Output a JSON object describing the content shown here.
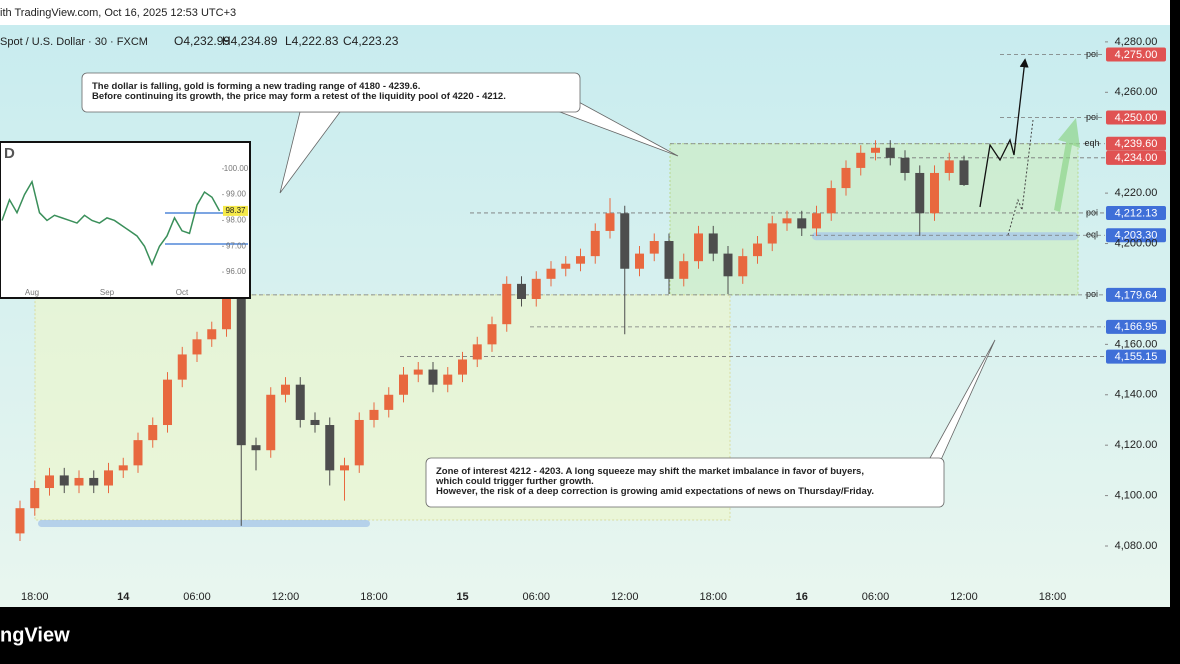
{
  "header": {
    "watermark": "ith TradingView.com, Oct 16, 2025 12:53 UTC+3",
    "symbol": "Spot / U.S. Dollar · 30 · FXCM"
  },
  "chart_data": [
    {
      "type": "candlestick",
      "ohlc_legend": [
        "O4,232.99",
        "H4,234.89",
        "L4,222.83",
        "C4,223.23"
      ],
      "categories": [
        null,
        "18:00",
        null,
        null,
        null,
        null,
        null,
        "14",
        null,
        null,
        null,
        null,
        "06:00",
        null,
        null,
        null,
        null,
        null,
        "12:00",
        null,
        null,
        null,
        null,
        null,
        "18:00",
        null,
        null,
        null,
        null,
        null,
        "15",
        null,
        null,
        null,
        null,
        "06:00",
        null,
        null,
        null,
        null,
        null,
        "12:00",
        null,
        null,
        null,
        null,
        null,
        "18:00",
        null,
        null,
        null,
        null,
        null,
        "16",
        null,
        null,
        null,
        null,
        "06:00",
        null,
        null,
        null,
        null,
        null,
        "12:00",
        null,
        null,
        null,
        null,
        null,
        "18:00"
      ],
      "open": [
        4085,
        4095,
        4103,
        4108,
        4104,
        4107,
        4104,
        4110,
        4112,
        4122,
        4128,
        4146,
        4156,
        4162,
        4166,
        4178,
        4120,
        4118,
        4140,
        4144,
        4130,
        4128,
        4110,
        4112,
        4130,
        4134,
        4140,
        4148,
        4150,
        4144,
        4148,
        4154,
        4160,
        4168,
        4184,
        4178,
        4186,
        4190,
        4192,
        4195,
        4205,
        4212,
        4190,
        4196,
        4201,
        4186,
        4193,
        4204,
        4196,
        4187,
        4195,
        4200,
        4208,
        4210,
        4206,
        4212,
        4222,
        4230,
        4236,
        4238,
        4234,
        4228,
        4212,
        4228,
        4232.99,
        null,
        null,
        null,
        null,
        null,
        null
      ],
      "high": [
        4098,
        4106,
        4111,
        4111,
        4110,
        4110,
        4113,
        4115,
        4125,
        4131,
        4149,
        4159,
        4165,
        4169,
        4183,
        4180,
        4123,
        4143,
        4147,
        4147,
        4133,
        4131,
        4115,
        4133,
        4137,
        4143,
        4151,
        4153,
        4153,
        4151,
        4157,
        4163,
        4171,
        4187,
        4187,
        4189,
        4193,
        4195,
        4198,
        4208,
        4218,
        4215,
        4199,
        4204,
        4204,
        4196,
        4207,
        4207,
        4199,
        4198,
        4203,
        4211,
        4213,
        4213,
        4215,
        4225,
        4233,
        4239,
        4241,
        4241,
        4237,
        4231,
        4231,
        4236,
        4234.89,
        null,
        null,
        null,
        null,
        null,
        null
      ],
      "low": [
        4082,
        4092,
        4100,
        4101,
        4101,
        4101,
        4101,
        4107,
        4109,
        4119,
        4125,
        4143,
        4153,
        4159,
        4163,
        4088,
        4110,
        4115,
        4137,
        4127,
        4125,
        4104,
        4098,
        4109,
        4127,
        4131,
        4137,
        4145,
        4141,
        4141,
        4145,
        4151,
        4157,
        4165,
        4175,
        4175,
        4183,
        4187,
        4189,
        4192,
        4202,
        4164,
        4187,
        4193,
        4180,
        4183,
        4190,
        4193,
        4180,
        4184,
        4192,
        4197,
        4205,
        4203,
        4203,
        4209,
        4219,
        4227,
        4233,
        4231,
        4225,
        4203,
        4209,
        4225,
        4222.83,
        null,
        null,
        null,
        null,
        null,
        null
      ],
      "close": [
        4095,
        4103,
        4108,
        4104,
        4107,
        4104,
        4110,
        4112,
        4122,
        4128,
        4146,
        4156,
        4162,
        4166,
        4178,
        4120,
        4118,
        4140,
        4144,
        4130,
        4128,
        4110,
        4112,
        4130,
        4134,
        4140,
        4148,
        4150,
        4144,
        4148,
        4154,
        4160,
        4168,
        4184,
        4178,
        4186,
        4190,
        4192,
        4195,
        4205,
        4212,
        4190,
        4196,
        4201,
        4186,
        4193,
        4204,
        4196,
        4187,
        4195,
        4200,
        4208,
        4210,
        4206,
        4212,
        4222,
        4230,
        4236,
        4238,
        4234,
        4228,
        4212,
        4228,
        4233,
        4223.23,
        null,
        null,
        null,
        null,
        null,
        null
      ],
      "up_color": "#e8683f",
      "down_color": "#4d4d4d",
      "ylim": [
        4055.8,
        4286.7
      ],
      "yticks": [
        {
          "value": 4280,
          "label": "4,280.00"
        },
        {
          "value": 4260,
          "label": "4,260.00"
        },
        {
          "value": 4220,
          "label": "4,220.00"
        },
        {
          "value": 4200,
          "label": "4,200.00"
        },
        {
          "value": 4160,
          "label": "4,160.00"
        },
        {
          "value": 4140,
          "label": "4,140.00"
        },
        {
          "value": 4120,
          "label": "4,120.00"
        },
        {
          "value": 4100,
          "label": "4,100.00"
        },
        {
          "value": 4080,
          "label": "4,080.00"
        }
      ],
      "grid": false,
      "levels": [
        {
          "value": 4275,
          "label": "4,275.00",
          "tag": "poi",
          "color": "#e05252"
        },
        {
          "value": 4250,
          "label": "4,250.00",
          "tag": "poi",
          "color": "#e05252"
        },
        {
          "value": 4239.6,
          "label": "4,239.60",
          "tag": "eqh",
          "color": "#e05252"
        },
        {
          "value": 4234,
          "label": "4,234.00",
          "color": "#e05252"
        },
        {
          "value": 4212.13,
          "label": "4,212.13",
          "tag": "poi",
          "color": "#3f6fd8"
        },
        {
          "value": 4203.3,
          "label": "4,203.30",
          "tag": "eql",
          "color": "#3f6fd8"
        },
        {
          "value": 4179.64,
          "label": "4,179.64",
          "tag": "poi",
          "color": "#3f6fd8"
        },
        {
          "value": 4166.95,
          "label": "4,166.95",
          "color": "#3f6fd8"
        },
        {
          "value": 4155.15,
          "label": "4,155.15",
          "color": "#3f6fd8"
        }
      ],
      "annotations": [
        {
          "lines": [
            "The dollar is falling, gold is forming a new trading range of 4180 - 4239.6.",
            "Before continuing its growth, the price may form a retest of the liquidity pool of 4220 - 4212."
          ]
        },
        {
          "lines": [
            "Zone of interest 4212 - 4203. A long squeeze may shift the market imbalance in favor of buyers,",
            "which could trigger further growth.",
            "However, the risk of a deep correction is growing amid expectations of news on Thursday/Friday."
          ]
        }
      ]
    },
    {
      "type": "line",
      "title": "D",
      "categories": [
        null,
        null,
        null,
        null,
        "Aug",
        null,
        null,
        null,
        null,
        null,
        null,
        null,
        null,
        null,
        "Sep",
        null,
        null,
        null,
        null,
        null,
        null,
        null,
        null,
        null,
        "Oct",
        null,
        null,
        null,
        null,
        null
      ],
      "values": [
        98.0,
        98.8,
        98.3,
        99.0,
        99.5,
        98.3,
        98.0,
        98.2,
        98.1,
        98.0,
        97.9,
        98.2,
        98.0,
        97.9,
        98.1,
        98.0,
        97.8,
        97.6,
        97.4,
        97.0,
        96.3,
        97.0,
        97.4,
        98.1,
        97.6,
        97.5,
        98.6,
        99.1,
        98.9,
        98.37
      ],
      "color": "#3a8f5a",
      "ylim": [
        95.5,
        101.0
      ],
      "yticks": [
        {
          "value": 100,
          "label": "100.00"
        },
        {
          "value": 99,
          "label": "99.00"
        },
        {
          "value": 98,
          "label": "98.00"
        },
        {
          "value": 97,
          "label": "97.00"
        },
        {
          "value": 96,
          "label": "96.00"
        }
      ]
    }
  ],
  "footer": {
    "brand": "ngView"
  }
}
